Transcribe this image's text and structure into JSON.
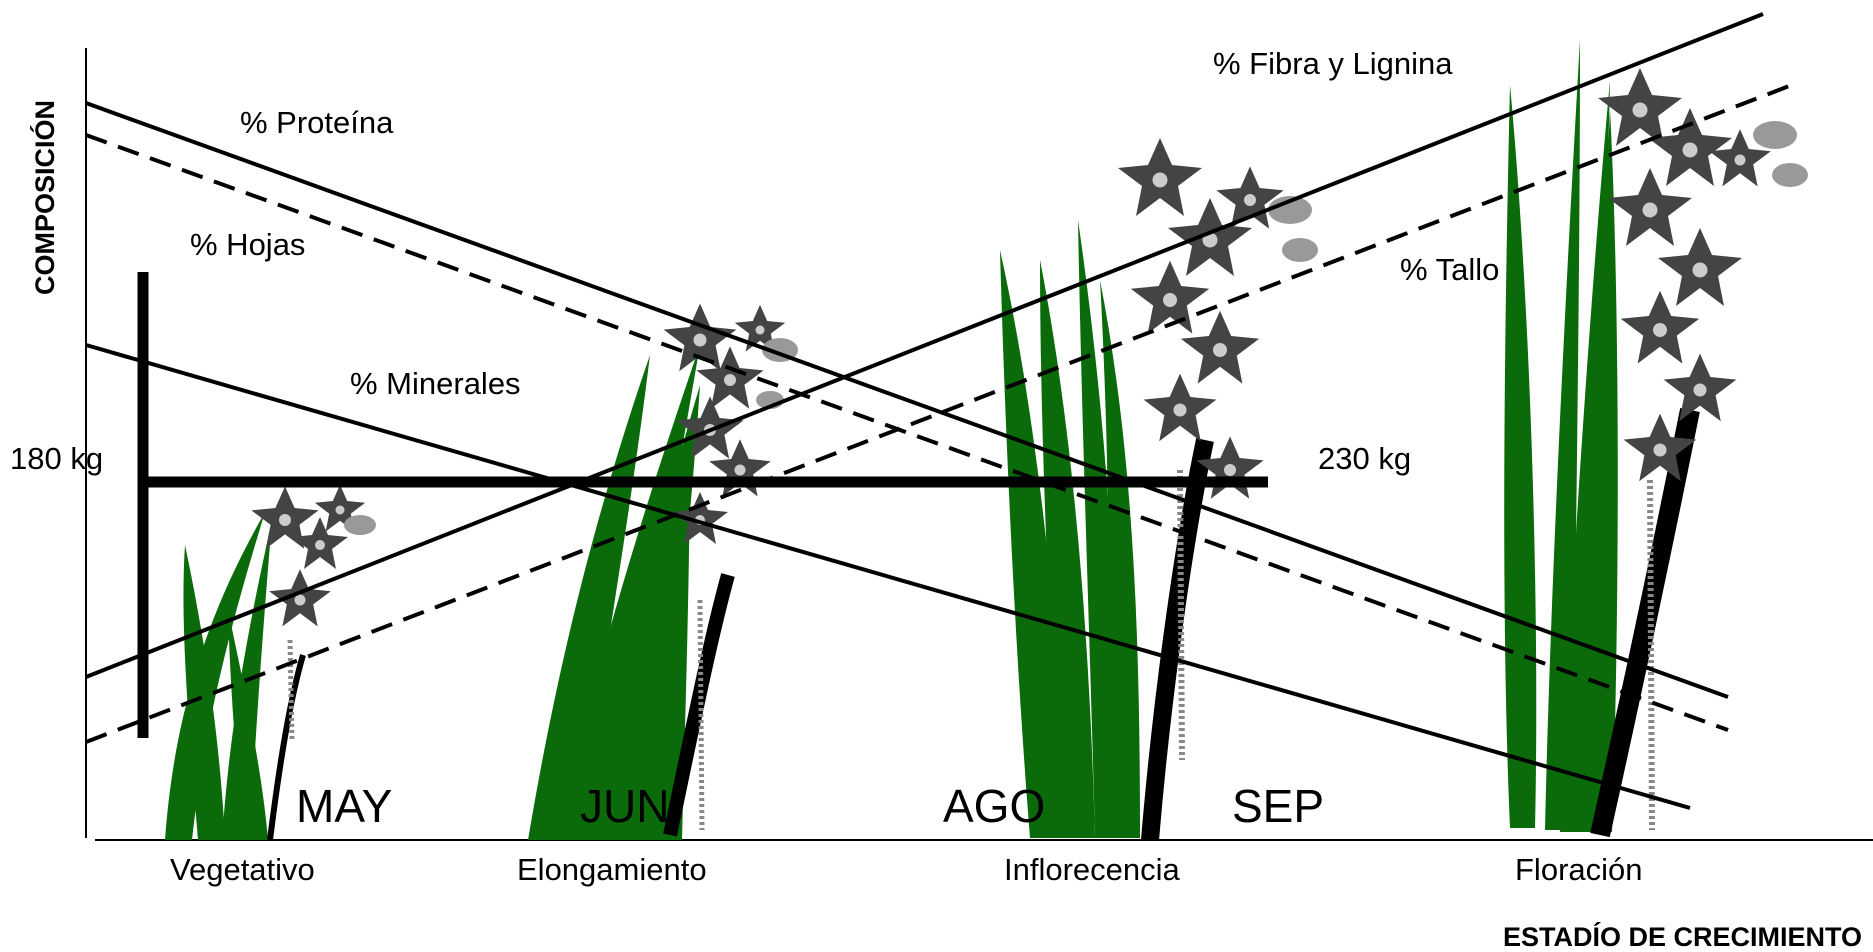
{
  "axes": {
    "y_title": "COMPOSICIÓN",
    "x_title": "ESTADÍO DE CRECIMIENTO"
  },
  "lines": {
    "proteina": "% Proteína",
    "hojas": "% Hojas",
    "minerales": "% Minerales",
    "fibra": "% Fibra y Lignina",
    "tallo": "% Tallo"
  },
  "weights": {
    "left": "180 kg",
    "right": "230 kg"
  },
  "months": [
    "MAY",
    "JUN",
    "AGO",
    "SEP"
  ],
  "stages": [
    "Vegetativo",
    "Elongamiento",
    "Inflorecencia",
    "Floración"
  ],
  "colors": {
    "leaf": "#0b6b0b",
    "stem": "#000000",
    "flower": "#555555",
    "line": "#000000"
  }
}
